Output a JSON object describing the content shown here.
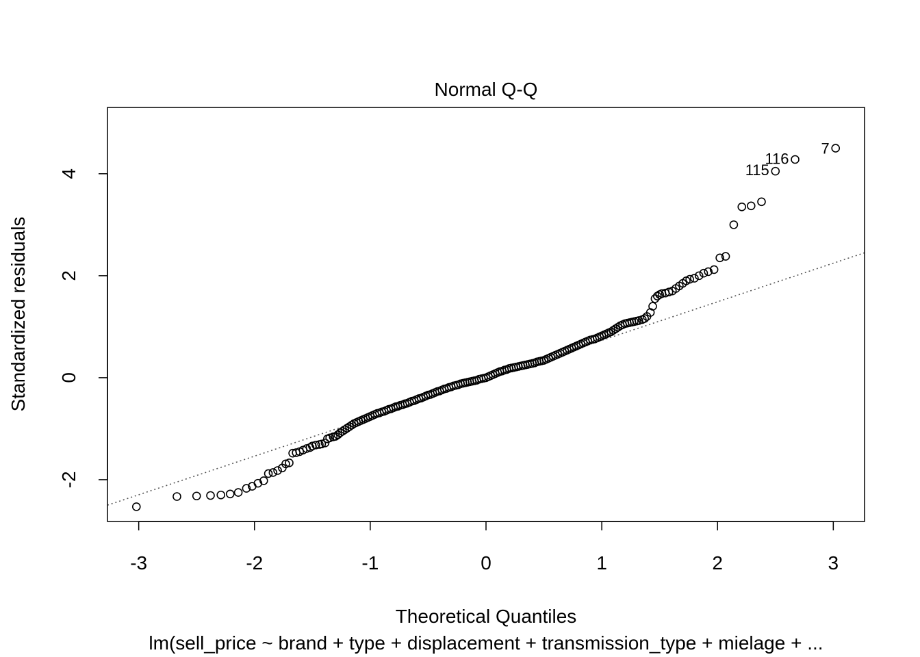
{
  "chart_data": {
    "type": "scatter",
    "title": "Normal Q-Q",
    "xlabel": "Theoretical Quantiles",
    "ylabel": "Standardized residuals",
    "subtitle": "lm(sell_price ~ brand + type + displacement + transmission_type + mielage + ...",
    "xlim": [
      -3.27,
      3.27
    ],
    "ylim": [
      -2.82,
      5.3
    ],
    "xticks": [
      -3,
      -2,
      -1,
      0,
      1,
      2,
      3
    ],
    "yticks": [
      -2,
      0,
      2,
      4
    ],
    "reference_line": {
      "x1": -3.27,
      "y1": -2.5,
      "x2": 3.27,
      "y2": 2.45
    },
    "annotations": [
      {
        "label": "7",
        "x": 3.02,
        "y": 4.5
      },
      {
        "label": "116",
        "x": 2.67,
        "y": 4.3
      },
      {
        "label": "115",
        "x": 2.5,
        "y": 4.08
      }
    ],
    "points": {
      "x": [
        -3.02,
        -2.67,
        -2.5,
        -2.38,
        -2.29,
        -2.21,
        -2.14,
        -2.07,
        -2.02,
        -1.97,
        -1.92,
        -1.88,
        -1.84,
        -1.8,
        -1.76,
        -1.73,
        -1.7,
        -1.67,
        -1.64,
        -1.61,
        -1.58,
        -1.55,
        -1.52,
        -1.5,
        -1.47,
        -1.44,
        -1.42,
        -1.39,
        -1.37,
        -1.35,
        -1.32,
        -1.3,
        -1.28,
        -1.26,
        -1.24,
        -1.22,
        -1.2,
        -1.18,
        -1.16,
        -1.14,
        -1.12,
        -1.1,
        -1.08,
        -1.06,
        -1.04,
        -1.02,
        -1.0,
        -0.98,
        -0.96,
        -0.94,
        -0.92,
        -0.9,
        -0.88,
        -0.86,
        -0.84,
        -0.82,
        -0.8,
        -0.78,
        -0.76,
        -0.74,
        -0.72,
        -0.7,
        -0.68,
        -0.66,
        -0.64,
        -0.62,
        -0.6,
        -0.58,
        -0.56,
        -0.54,
        -0.52,
        -0.5,
        -0.48,
        -0.46,
        -0.44,
        -0.42,
        -0.4,
        -0.38,
        -0.36,
        -0.34,
        -0.32,
        -0.3,
        -0.28,
        -0.26,
        -0.24,
        -0.22,
        -0.2,
        -0.18,
        -0.16,
        -0.14,
        -0.12,
        -0.1,
        -0.08,
        -0.06,
        -0.04,
        -0.02,
        0.0,
        0.02,
        0.04,
        0.06,
        0.08,
        0.1,
        0.12,
        0.14,
        0.16,
        0.18,
        0.2,
        0.22,
        0.24,
        0.26,
        0.28,
        0.3,
        0.32,
        0.34,
        0.36,
        0.38,
        0.4,
        0.42,
        0.44,
        0.46,
        0.48,
        0.5,
        0.52,
        0.54,
        0.56,
        0.58,
        0.6,
        0.62,
        0.64,
        0.66,
        0.68,
        0.7,
        0.72,
        0.74,
        0.76,
        0.78,
        0.8,
        0.82,
        0.84,
        0.86,
        0.88,
        0.9,
        0.92,
        0.94,
        0.96,
        0.98,
        1.0,
        1.02,
        1.04,
        1.06,
        1.08,
        1.1,
        1.12,
        1.14,
        1.16,
        1.18,
        1.2,
        1.22,
        1.24,
        1.26,
        1.28,
        1.3,
        1.32,
        1.35,
        1.37,
        1.39,
        1.42,
        1.44,
        1.46,
        1.48,
        1.5,
        1.52,
        1.55,
        1.58,
        1.61,
        1.64,
        1.67,
        1.7,
        1.73,
        1.76,
        1.8,
        1.84,
        1.88,
        1.92,
        1.97,
        2.02,
        2.07,
        2.14,
        2.21,
        2.29,
        2.38,
        2.5,
        2.67,
        3.02
      ],
      "y": [
        -2.53,
        -2.33,
        -2.32,
        -2.31,
        -2.3,
        -2.28,
        -2.25,
        -2.17,
        -2.13,
        -2.07,
        -2.02,
        -1.88,
        -1.86,
        -1.82,
        -1.77,
        -1.69,
        -1.67,
        -1.48,
        -1.47,
        -1.45,
        -1.42,
        -1.39,
        -1.37,
        -1.34,
        -1.32,
        -1.31,
        -1.3,
        -1.28,
        -1.2,
        -1.18,
        -1.16,
        -1.15,
        -1.12,
        -1.08,
        -1.05,
        -1.02,
        -0.99,
        -0.96,
        -0.93,
        -0.9,
        -0.88,
        -0.86,
        -0.84,
        -0.82,
        -0.8,
        -0.78,
        -0.76,
        -0.74,
        -0.72,
        -0.7,
        -0.69,
        -0.67,
        -0.66,
        -0.64,
        -0.62,
        -0.61,
        -0.59,
        -0.57,
        -0.56,
        -0.54,
        -0.53,
        -0.51,
        -0.5,
        -0.48,
        -0.46,
        -0.45,
        -0.43,
        -0.41,
        -0.4,
        -0.38,
        -0.36,
        -0.34,
        -0.33,
        -0.31,
        -0.29,
        -0.27,
        -0.26,
        -0.24,
        -0.22,
        -0.21,
        -0.19,
        -0.18,
        -0.16,
        -0.15,
        -0.14,
        -0.12,
        -0.11,
        -0.1,
        -0.09,
        -0.08,
        -0.07,
        -0.06,
        -0.05,
        -0.03,
        -0.02,
        -0.01,
        0.0,
        0.02,
        0.04,
        0.06,
        0.08,
        0.1,
        0.12,
        0.13,
        0.15,
        0.16,
        0.18,
        0.19,
        0.2,
        0.21,
        0.22,
        0.23,
        0.24,
        0.25,
        0.26,
        0.27,
        0.28,
        0.29,
        0.31,
        0.32,
        0.33,
        0.34,
        0.36,
        0.38,
        0.4,
        0.42,
        0.44,
        0.46,
        0.48,
        0.5,
        0.52,
        0.54,
        0.56,
        0.58,
        0.6,
        0.62,
        0.64,
        0.66,
        0.68,
        0.7,
        0.72,
        0.74,
        0.75,
        0.76,
        0.78,
        0.8,
        0.82,
        0.84,
        0.86,
        0.88,
        0.9,
        0.93,
        0.96,
        0.99,
        1.02,
        1.04,
        1.06,
        1.07,
        1.08,
        1.09,
        1.1,
        1.11,
        1.12,
        1.14,
        1.16,
        1.2,
        1.28,
        1.4,
        1.55,
        1.6,
        1.63,
        1.65,
        1.66,
        1.68,
        1.7,
        1.75,
        1.8,
        1.85,
        1.9,
        1.93,
        1.95,
        2.0,
        2.05,
        2.08,
        2.12,
        2.35,
        2.38,
        3.0,
        3.35,
        3.37,
        3.45,
        4.05,
        4.28,
        4.5
      ]
    }
  }
}
